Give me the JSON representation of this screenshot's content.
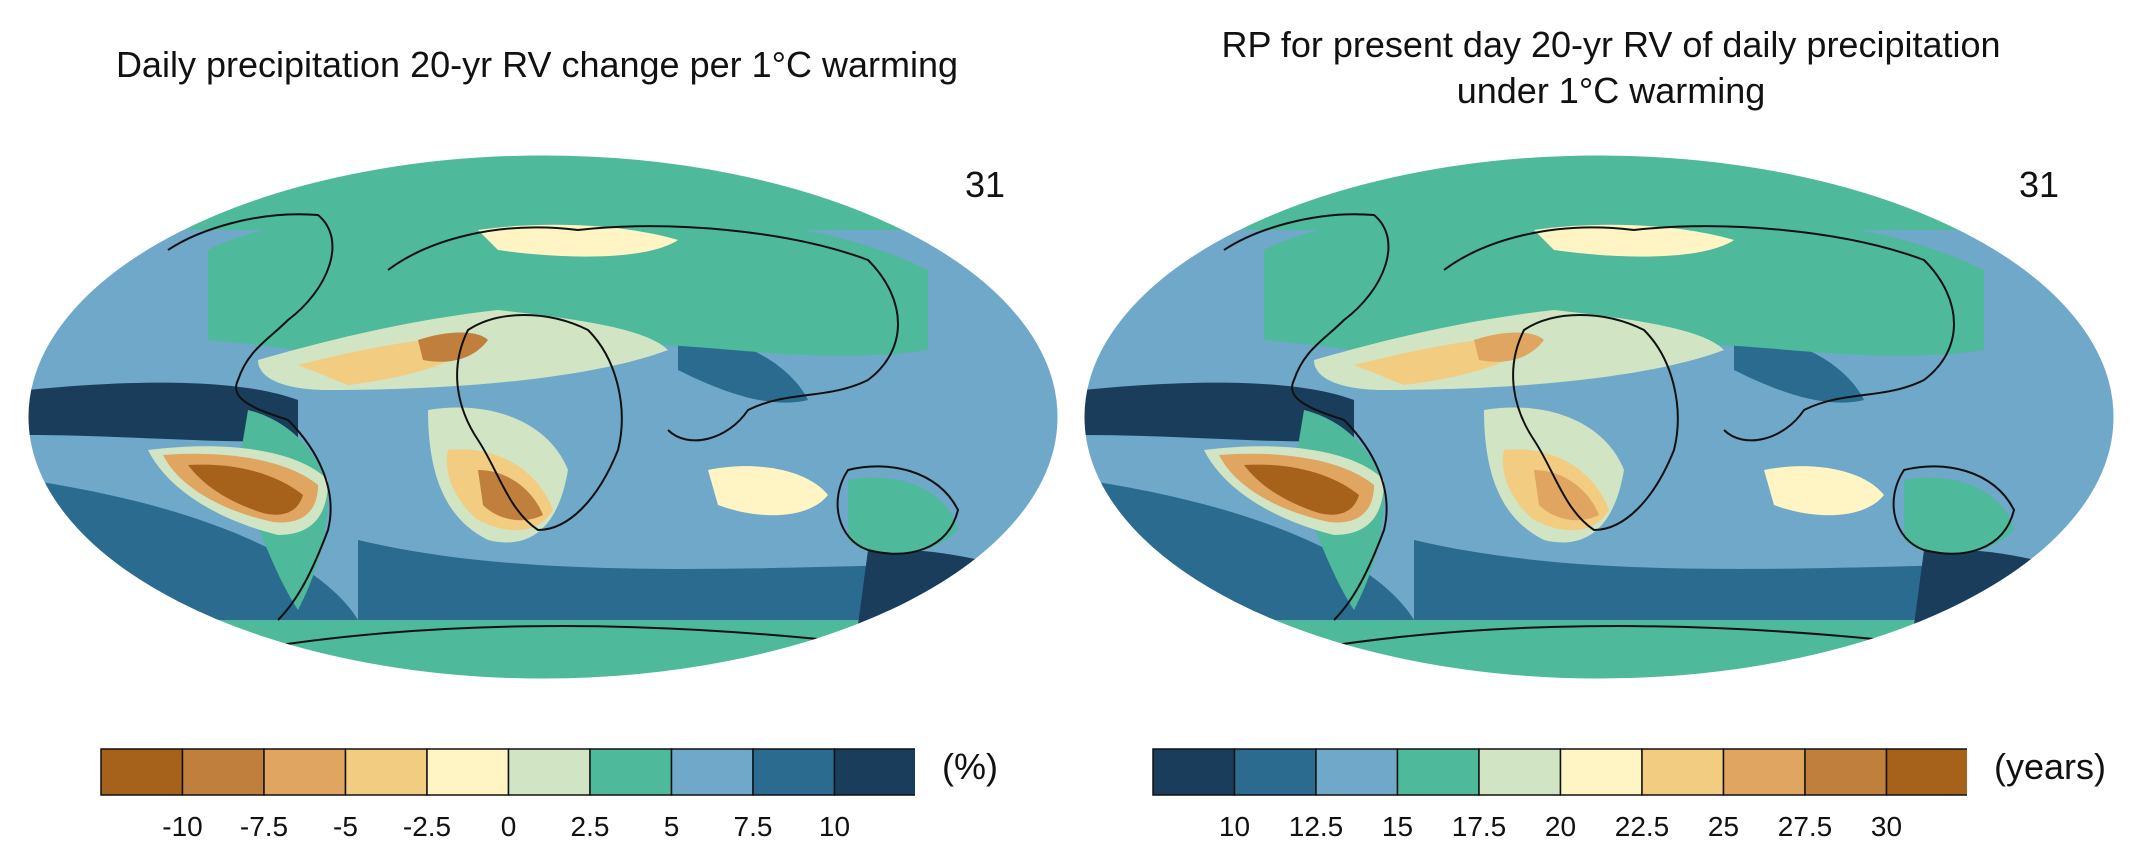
{
  "panels": [
    {
      "title": "Daily precipitation 20-yr RV change per 1°C warming",
      "count": "31",
      "colorbar": {
        "unit": "(%)",
        "colors": [
          "#a6611a",
          "#c17f3e",
          "#dfa561",
          "#f2cc80",
          "#fff5c4",
          "#d1e5c4",
          "#4eb99b",
          "#6fa8c9",
          "#2a6b8f",
          "#1b3d5c"
        ],
        "ticks": [
          "-10",
          "-7.5",
          "-5",
          "-2.5",
          "0",
          "2.5",
          "5",
          "7.5",
          "10"
        ]
      }
    },
    {
      "title_lines": [
        "RP for present day 20-yr RV of daily precipitation",
        "under 1°C warming"
      ],
      "count": "31",
      "colorbar": {
        "unit": "(years)",
        "colors": [
          "#1b3d5c",
          "#2a6b8f",
          "#6fa8c9",
          "#4eb99b",
          "#d1e5c4",
          "#fff5c4",
          "#f2cc80",
          "#dfa561",
          "#c17f3e",
          "#a6611a"
        ],
        "ticks": [
          "10",
          "12.5",
          "15",
          "17.5",
          "20",
          "22.5",
          "25",
          "27.5",
          "30"
        ]
      }
    }
  ]
}
